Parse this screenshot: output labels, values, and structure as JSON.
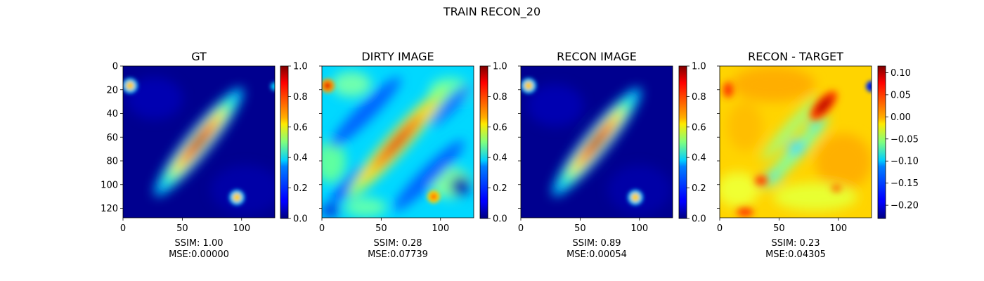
{
  "figure": {
    "title": "TRAIN RECON_20"
  },
  "colormap": "jet",
  "colors": {
    "jet_low": "#00007f",
    "jet_mid": "#7fff7f",
    "jet_high": "#7f0000"
  },
  "chart_data": [
    {
      "type": "heatmap",
      "title": "GT",
      "image_size": [
        128,
        128
      ],
      "xticks": [
        0,
        50,
        100
      ],
      "yticks": [
        0,
        20,
        40,
        60,
        80,
        100,
        120
      ],
      "xlim": [
        0,
        128
      ],
      "ylim": [
        128,
        0
      ],
      "colorbar": {
        "range": [
          0.0,
          1.0
        ],
        "ticks": [
          "0.0",
          "0.2",
          "0.4",
          "0.6",
          "0.8",
          "1.0"
        ]
      },
      "xlabel": "SSIM: 1.00\nMSE:0.00000",
      "metrics": {
        "ssim": 1.0,
        "mse": 0.0
      }
    },
    {
      "type": "heatmap",
      "title": "DIRTY IMAGE",
      "image_size": [
        128,
        128
      ],
      "xticks": [
        0,
        50,
        100
      ],
      "xlim": [
        0,
        128
      ],
      "ylim": [
        128,
        0
      ],
      "colorbar": {
        "range": [
          0.0,
          1.0
        ],
        "ticks": [
          "0.0",
          "0.2",
          "0.4",
          "0.6",
          "0.8",
          "1.0"
        ]
      },
      "xlabel": "SSIM: 0.28\nMSE:0.07739",
      "metrics": {
        "ssim": 0.28,
        "mse": 0.07739
      }
    },
    {
      "type": "heatmap",
      "title": "RECON IMAGE",
      "image_size": [
        128,
        128
      ],
      "xticks": [
        0,
        50,
        100
      ],
      "xlim": [
        0,
        128
      ],
      "ylim": [
        128,
        0
      ],
      "colorbar": {
        "range": [
          0.0,
          1.0
        ],
        "ticks": [
          "0.0",
          "0.2",
          "0.4",
          "0.6",
          "0.8",
          "1.0"
        ]
      },
      "xlabel": "SSIM: 0.89\nMSE:0.00054",
      "metrics": {
        "ssim": 0.89,
        "mse": 0.00054
      }
    },
    {
      "type": "heatmap",
      "title": "RECON - TARGET",
      "image_size": [
        128,
        128
      ],
      "xticks": [
        0,
        50,
        100
      ],
      "xlim": [
        0,
        128
      ],
      "ylim": [
        128,
        0
      ],
      "colorbar": {
        "range": [
          -0.23,
          0.115
        ],
        "ticks": [
          "0.10",
          "0.05",
          "0.00",
          "−0.05",
          "−0.10",
          "−0.15",
          "−0.20"
        ]
      },
      "xlabel": "SSIM: 0.23\nMSE:0.04305",
      "metrics": {
        "ssim": 0.23,
        "mse": 0.04305
      }
    }
  ]
}
